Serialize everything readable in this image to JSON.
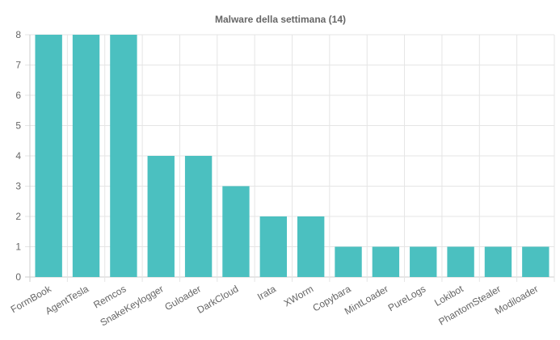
{
  "chart_data": {
    "type": "bar",
    "title": "Malware della settimana (14)",
    "xlabel": "",
    "ylabel": "",
    "ylim": [
      0,
      8
    ],
    "yticks": [
      0,
      1,
      2,
      3,
      4,
      5,
      6,
      7,
      8
    ],
    "grid": true,
    "legend": "none",
    "bar_color": "#4bc0c0",
    "categories": [
      "FormBook",
      "AgentTesla",
      "Remcos",
      "SnakeKeylogger",
      "Guloader",
      "DarkCloud",
      "Irata",
      "XWorm",
      "Copybara",
      "MintLoader",
      "PureLogs",
      "Lokibot",
      "PhantomStealer",
      "Modiloader"
    ],
    "values": [
      8,
      8,
      8,
      4,
      4,
      3,
      2,
      2,
      1,
      1,
      1,
      1,
      1,
      1
    ]
  }
}
